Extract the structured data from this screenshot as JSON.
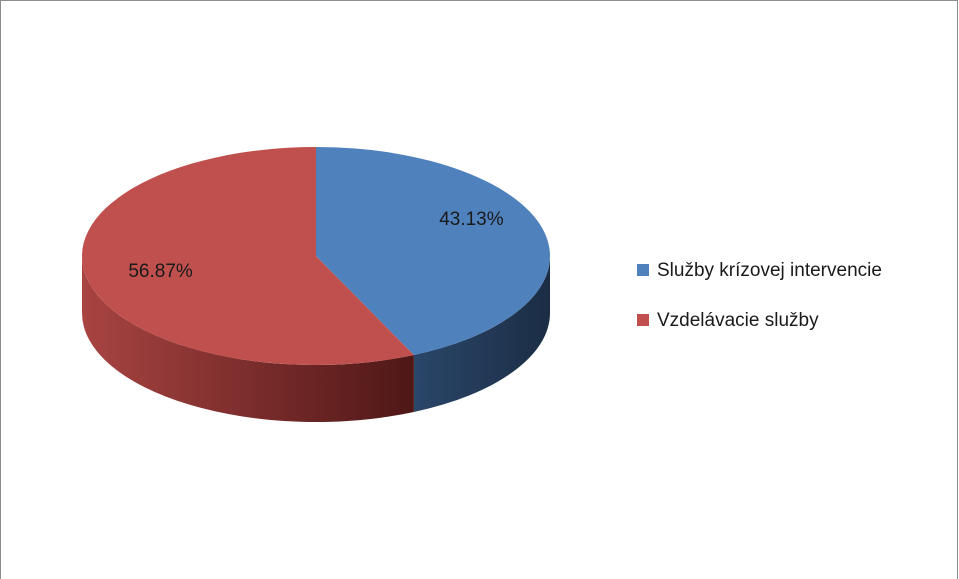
{
  "chart_data": {
    "type": "pie",
    "categories": [
      "Služby krízovej intervencie",
      "Vzdelávacie služby"
    ],
    "values": [
      43.13,
      56.87
    ],
    "value_labels": [
      "43.13%",
      "56.87%"
    ],
    "colors": [
      "#4f81bd",
      "#c0504d"
    ],
    "legend": "right"
  }
}
